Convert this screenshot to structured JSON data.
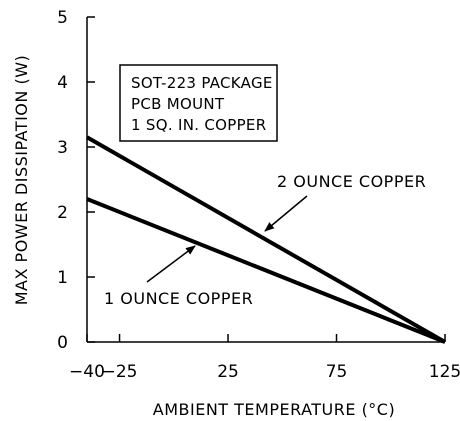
{
  "chart_data": {
    "type": "line",
    "xlabel": "AMBIENT TEMPERATURE (°C)",
    "ylabel": "MAX POWER DISSIPATION (W)",
    "xticks": [
      -40,
      -25,
      25,
      75,
      125
    ],
    "yticks": [
      0,
      1,
      2,
      3,
      4,
      5
    ],
    "xlim": [
      -40,
      125
    ],
    "ylim": [
      0,
      5
    ],
    "grid": false,
    "series": [
      {
        "name": "2 OUNCE COPPER",
        "x": [
          -40,
          125
        ],
        "y": [
          3.15,
          0
        ]
      },
      {
        "name": "1 OUNCE COPPER",
        "x": [
          -40,
          125
        ],
        "y": [
          2.2,
          0
        ]
      }
    ],
    "annotation_box": [
      "SOT-223 PACKAGE",
      "PCB MOUNT",
      "1 SQ. IN. COPPER"
    ],
    "callouts": [
      {
        "text": "2 OUNCE COPPER",
        "series_index": 0
      },
      {
        "text": "1 OUNCE COPPER",
        "series_index": 1
      }
    ]
  }
}
